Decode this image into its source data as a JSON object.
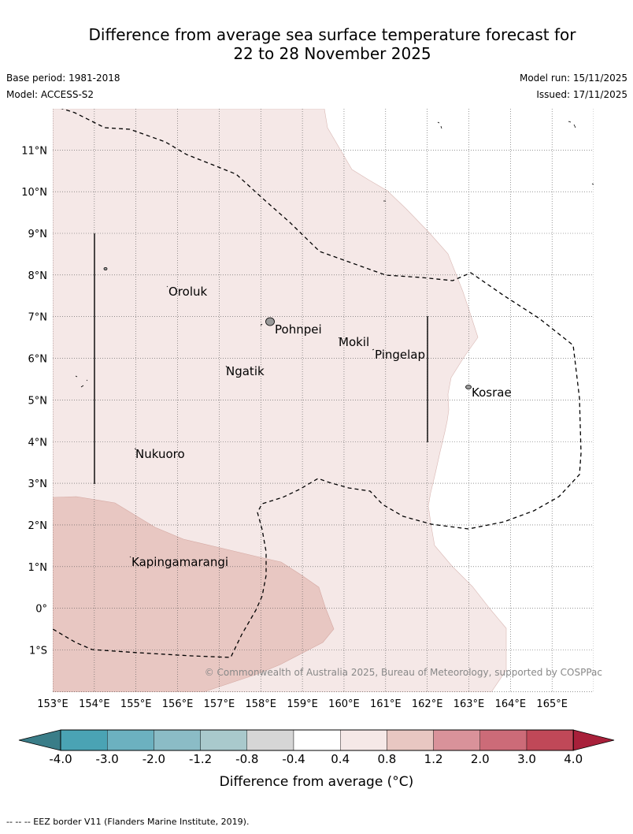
{
  "title": {
    "line1": "Difference from average sea surface temperature forecast for",
    "line2": "22 to 28 November 2025"
  },
  "meta": {
    "base_period": "Base period: 1981-2018",
    "model": "Model: ACCESS-S2",
    "model_run": "Model run: 15/11/2025",
    "issued": "Issued: 17/11/2025"
  },
  "map": {
    "lon_labels": [
      "153°E",
      "154°E",
      "155°E",
      "156°E",
      "157°E",
      "158°E",
      "159°E",
      "160°E",
      "161°E",
      "162°E",
      "163°E",
      "164°E",
      "165°E"
    ],
    "lat_labels": [
      "11°N",
      "10°N",
      "9°N",
      "8°N",
      "7°N",
      "6°N",
      "5°N",
      "4°N",
      "3°N",
      "2°N",
      "1°N",
      "0°",
      "1°S"
    ],
    "places": [
      {
        "name": "Oroluk"
      },
      {
        "name": "Pohnpei"
      },
      {
        "name": "Mokil"
      },
      {
        "name": "Pingelap"
      },
      {
        "name": "Ngatik"
      },
      {
        "name": "Kosrae"
      },
      {
        "name": "Nukuoro"
      },
      {
        "name": "Kapingamarangi"
      }
    ],
    "credit": "© Commonwealth of Australia 2025, Bureau of Meteorology, supported by COSPPac"
  },
  "colorbar": {
    "ticks": [
      "-4.0",
      "-3.0",
      "-2.0",
      "-1.2",
      "-0.8",
      "-0.4",
      "0.4",
      "0.8",
      "1.2",
      "2.0",
      "3.0",
      "4.0"
    ],
    "colors": [
      "#4aa3b4",
      "#6cb1c0",
      "#8bbcc6",
      "#a9c9cc",
      "#d6d6d6",
      "#ffffff",
      "#f5e8e7",
      "#e8c7c2",
      "#d9929a",
      "#cc6b78",
      "#c04858"
    ],
    "under_color": "#3a7d88",
    "over_color": "#a8203a",
    "label": "Difference from average (°C)"
  },
  "footnote": "--  --  -- EEZ border V11 (Flanders Marine Institute, 2019)."
}
